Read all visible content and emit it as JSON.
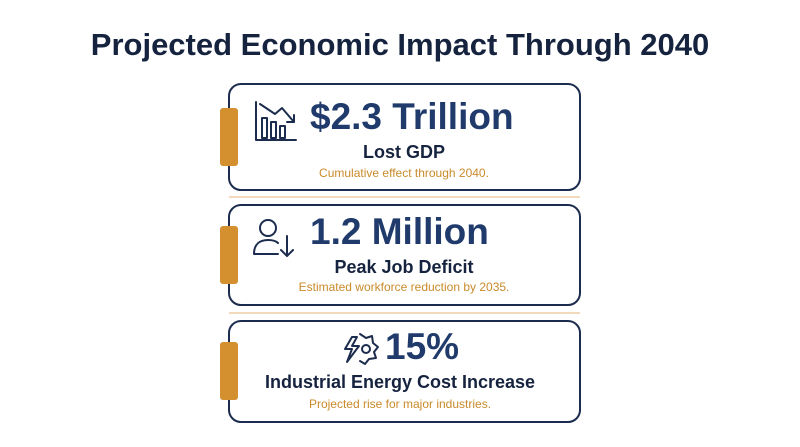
{
  "title": "Projected Economic Impact Through 2040",
  "cards": [
    {
      "value": "$2.3 Trillion",
      "label": "Lost GDP",
      "note": "Cumulative effect through 2040."
    },
    {
      "value": "1.2 Million",
      "label": "Peak Job Deficit",
      "note": "Estimated workforce reduction by 2035."
    },
    {
      "value": "15%",
      "label": "Industrial Energy Cost Increase",
      "note": "Projected rise for major industries."
    }
  ]
}
